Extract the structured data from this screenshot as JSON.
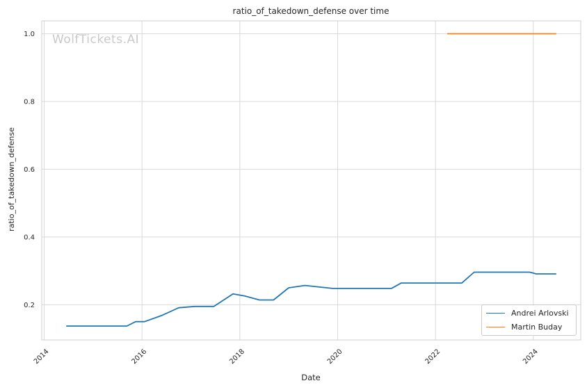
{
  "figure": {
    "watermark": "WolfTickets.AI",
    "watermark_color": "#c9c9c9",
    "background_color": "#ffffff",
    "grid_color": "#d9d9d9",
    "spine_color": "#cfcfcf",
    "text_color": "#262626"
  },
  "chart_data": {
    "type": "line",
    "title": "ratio_of_takedown_defense over time",
    "xlabel": "Date",
    "ylabel": "ratio_of_takedown_defense",
    "grid": true,
    "legend_position": "lower right",
    "x_range": [
      2013.95,
      2024.97
    ],
    "y_range": [
      0.096,
      1.038
    ],
    "x_ticks": [
      2014,
      2016,
      2018,
      2020,
      2022,
      2024
    ],
    "x_tick_labels": [
      "2014",
      "2016",
      "2018",
      "2020",
      "2022",
      "2024"
    ],
    "y_ticks": [
      0.2,
      0.4,
      0.6,
      0.8,
      1.0
    ],
    "y_tick_labels": [
      "0.2",
      "0.4",
      "0.6",
      "0.8",
      "1.0"
    ],
    "series": [
      {
        "name": "Andrei Arlovski",
        "color": "#1f77b4",
        "x": [
          2014.45,
          2015.69,
          2015.87,
          2016.05,
          2016.4,
          2016.75,
          2017.08,
          2017.47,
          2017.86,
          2018.1,
          2018.4,
          2018.69,
          2019.0,
          2019.33,
          2019.9,
          2021.1,
          2021.3,
          2022.54,
          2022.79,
          2023.93,
          2024.06,
          2024.47
        ],
        "y": [
          0.137,
          0.137,
          0.15,
          0.15,
          0.168,
          0.191,
          0.195,
          0.195,
          0.232,
          0.226,
          0.214,
          0.214,
          0.25,
          0.257,
          0.248,
          0.248,
          0.264,
          0.264,
          0.296,
          0.296,
          0.291,
          0.291
        ]
      },
      {
        "name": "Martin Buday",
        "color": "#ff7f0e",
        "x": [
          2022.24,
          2024.47
        ],
        "y": [
          1.0,
          1.0
        ]
      }
    ]
  }
}
